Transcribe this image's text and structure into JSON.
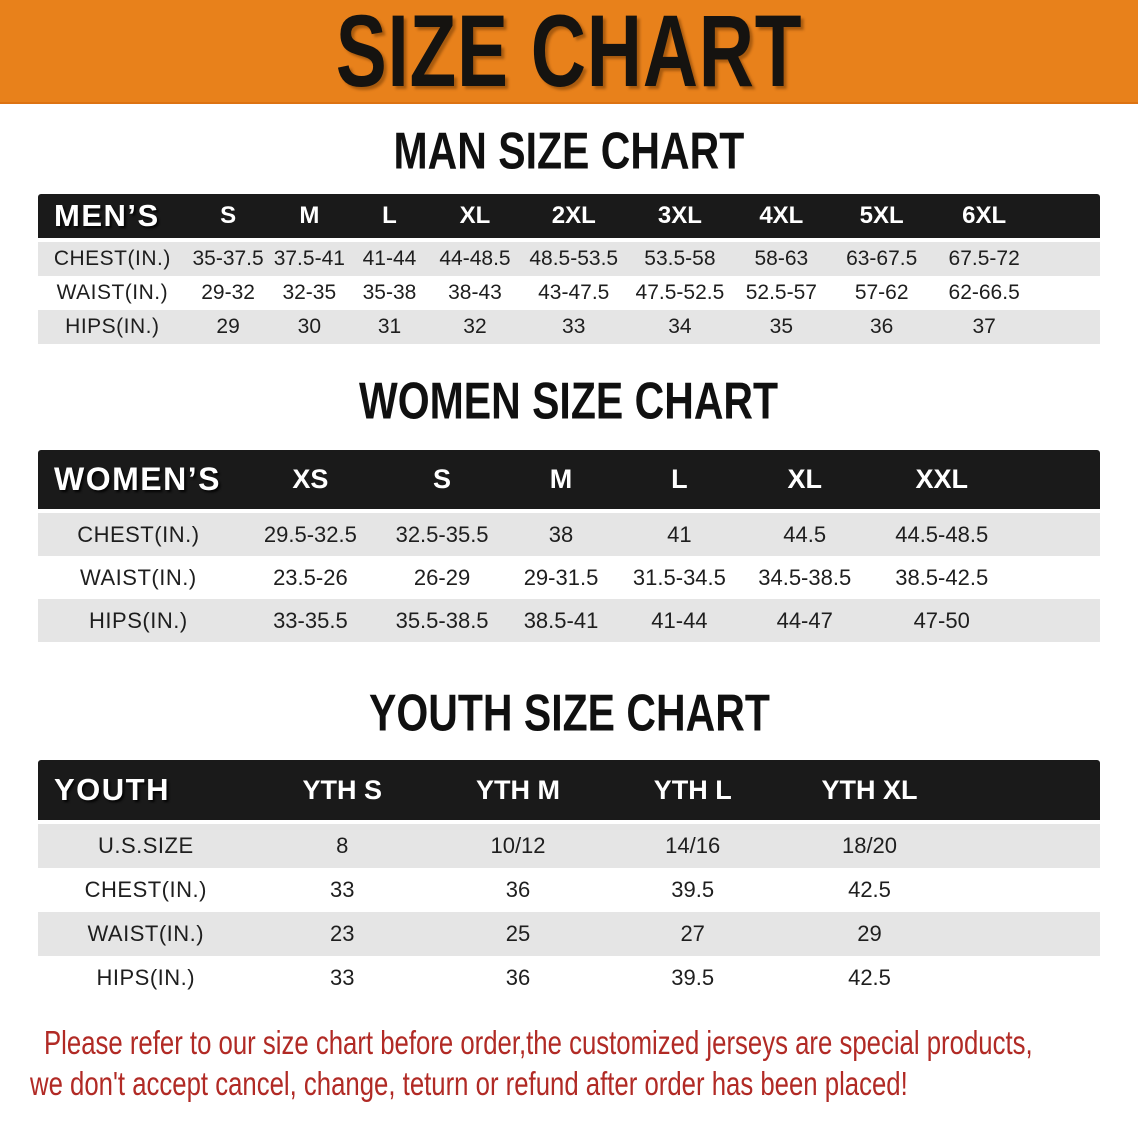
{
  "banner": {
    "title": "SIZE CHART"
  },
  "colors": {
    "banner_orange": "#E8811B",
    "table_header_black": "#1A1A1A",
    "row_stripe_gray": "#E5E5E5",
    "disclaimer_red": "#B12A25"
  },
  "sections": [
    {
      "heading": "MAN SIZE CHART",
      "table": {
        "header_label": "MEN’S",
        "columns": [
          "S",
          "M",
          "L",
          "XL",
          "2XL",
          "3XL",
          "4XL",
          "5XL",
          "6XL"
        ],
        "rows": [
          {
            "label": "CHEST(IN.)",
            "values": [
              "35-37.5",
              "37.5-41",
              "41-44",
              "44-48.5",
              "48.5-53.5",
              "53.5-58",
              "58-63",
              "63-67.5",
              "67.5-72"
            ]
          },
          {
            "label": "WAIST(IN.)",
            "values": [
              "29-32",
              "32-35",
              "35-38",
              "38-43",
              "43-47.5",
              "47.5-52.5",
              "52.5-57",
              "57-62",
              "62-66.5"
            ]
          },
          {
            "label": "HIPS(IN.)",
            "values": [
              "29",
              "30",
              "31",
              "32",
              "33",
              "34",
              "35",
              "36",
              "37"
            ]
          }
        ]
      }
    },
    {
      "heading": "WOMEN SIZE CHART",
      "table": {
        "header_label": "WOMEN’S",
        "columns": [
          "XS",
          "S",
          "M",
          "L",
          "XL",
          "XXL"
        ],
        "rows": [
          {
            "label": "CHEST(IN.)",
            "values": [
              "29.5-32.5",
              "32.5-35.5",
              "38",
              "41",
              "44.5",
              "44.5-48.5"
            ]
          },
          {
            "label": "WAIST(IN.)",
            "values": [
              "23.5-26",
              "26-29",
              "29-31.5",
              "31.5-34.5",
              "34.5-38.5",
              "38.5-42.5"
            ]
          },
          {
            "label": "HIPS(IN.)",
            "values": [
              "33-35.5",
              "35.5-38.5",
              "38.5-41",
              "41-44",
              "44-47",
              "47-50"
            ]
          }
        ]
      }
    },
    {
      "heading": "YOUTH SIZE CHART",
      "table": {
        "header_label": "YOUTH",
        "columns": [
          "YTH S",
          "YTH M",
          "YTH L",
          "YTH XL"
        ],
        "rows": [
          {
            "label": "U.S.SIZE",
            "values": [
              "8",
              "10/12",
              "14/16",
              "18/20"
            ]
          },
          {
            "label": "CHEST(IN.)",
            "values": [
              "33",
              "36",
              "39.5",
              "42.5"
            ]
          },
          {
            "label": "WAIST(IN.)",
            "values": [
              "23",
              "25",
              "27",
              "29"
            ]
          },
          {
            "label": "HIPS(IN.)",
            "values": [
              "33",
              "36",
              "39.5",
              "42.5"
            ]
          }
        ]
      }
    }
  ],
  "disclaimer": {
    "line1": "Please refer to our size chart before order,the customized jerseys are special products,",
    "line2": "we don't accept cancel, change, teturn or refund after order has been placed!"
  }
}
